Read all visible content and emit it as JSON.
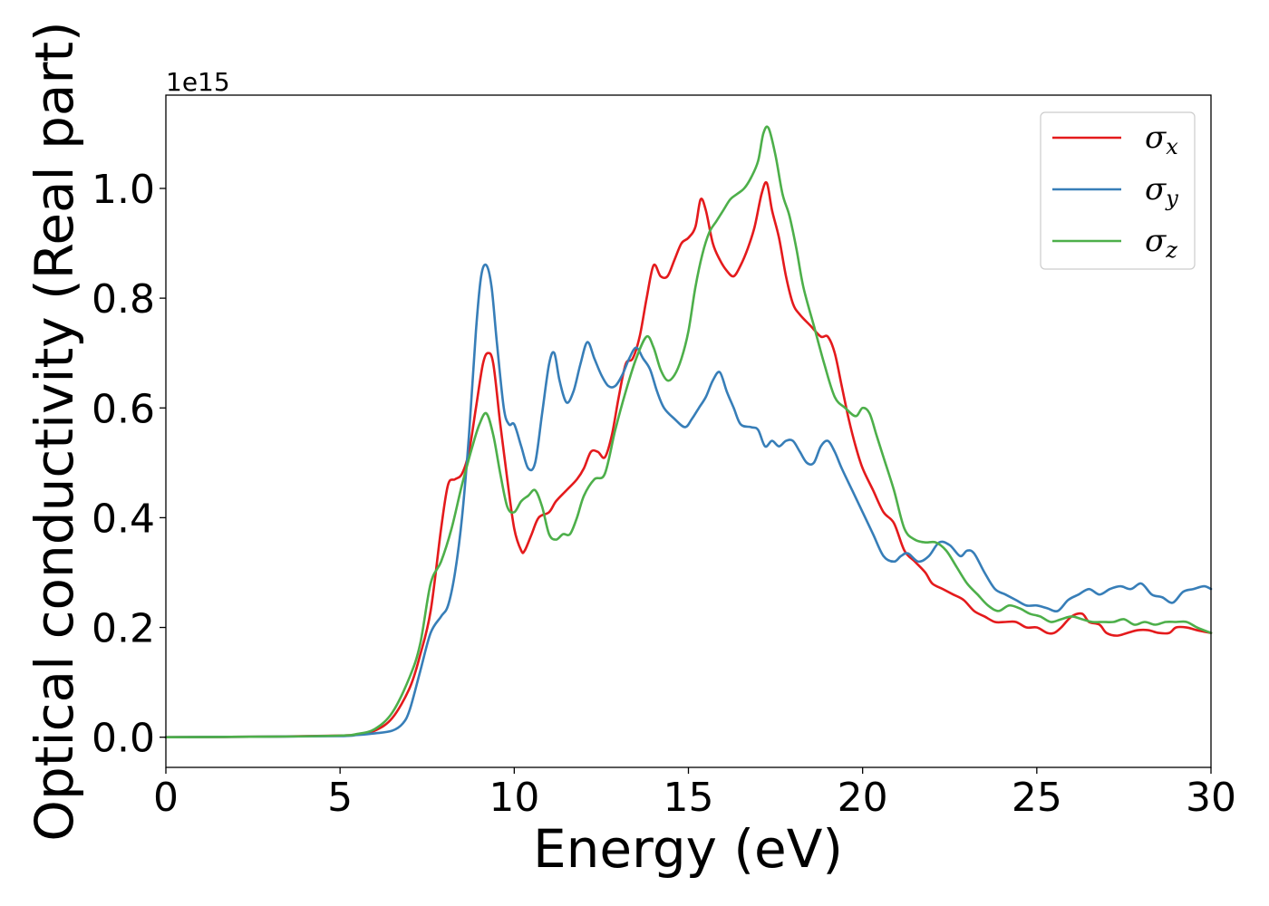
{
  "chart_data": {
    "type": "line",
    "xlabel": "Energy (eV)",
    "ylabel": "Optical conductivity (Real part)",
    "y_offset_text": "1e15",
    "xlim": [
      0,
      30
    ],
    "ylim": [
      -0.055,
      1.17
    ],
    "x_ticks": [
      0,
      5,
      10,
      15,
      20,
      25,
      30
    ],
    "y_ticks": [
      0.0,
      0.2,
      0.4,
      0.6,
      0.8,
      1.0
    ],
    "x_tick_labels": [
      "0",
      "5",
      "10",
      "15",
      "20",
      "25",
      "30"
    ],
    "y_tick_labels": [
      "0.0",
      "0.2",
      "0.4",
      "0.6",
      "0.8",
      "1.0"
    ],
    "grid": false,
    "legend_position": "top-right",
    "series": [
      {
        "name": "σx",
        "symbol": "σ",
        "subscript": "x",
        "color": "#e41a1c",
        "x": [
          0,
          3,
          5,
          5.5,
          6,
          6.5,
          7,
          7.3,
          7.6,
          7.9,
          8.1,
          8.3,
          8.5,
          8.7,
          8.9,
          9.1,
          9.25,
          9.4,
          9.6,
          9.8,
          10.0,
          10.2,
          10.3,
          10.5,
          10.7,
          11.0,
          11.2,
          11.5,
          11.8,
          12.0,
          12.2,
          12.4,
          12.6,
          12.8,
          13.0,
          13.2,
          13.4,
          13.6,
          13.8,
          14.0,
          14.2,
          14.4,
          14.6,
          14.8,
          15.0,
          15.2,
          15.35,
          15.5,
          15.7,
          15.9,
          16.1,
          16.3,
          16.5,
          16.7,
          16.9,
          17.1,
          17.25,
          17.4,
          17.6,
          17.8,
          18.0,
          18.2,
          18.5,
          18.8,
          19.0,
          19.2,
          19.4,
          19.6,
          19.8,
          20.0,
          20.3,
          20.6,
          20.9,
          21.2,
          21.5,
          21.8,
          22.0,
          22.3,
          22.6,
          22.9,
          23.2,
          23.5,
          23.8,
          24.1,
          24.4,
          24.7,
          25.0,
          25.3,
          25.5,
          25.7,
          26.0,
          26.3,
          26.5,
          26.8,
          27.0,
          27.3,
          27.6,
          27.9,
          28.2,
          28.5,
          28.8,
          29.0,
          29.3,
          29.6,
          30.0
        ],
        "y": [
          0,
          0.001,
          0.003,
          0.005,
          0.012,
          0.035,
          0.09,
          0.15,
          0.23,
          0.38,
          0.46,
          0.47,
          0.48,
          0.52,
          0.6,
          0.68,
          0.7,
          0.68,
          0.57,
          0.47,
          0.38,
          0.34,
          0.34,
          0.37,
          0.4,
          0.41,
          0.43,
          0.45,
          0.47,
          0.49,
          0.52,
          0.52,
          0.51,
          0.55,
          0.62,
          0.68,
          0.69,
          0.73,
          0.8,
          0.86,
          0.84,
          0.84,
          0.87,
          0.9,
          0.91,
          0.93,
          0.98,
          0.96,
          0.9,
          0.87,
          0.85,
          0.84,
          0.86,
          0.89,
          0.93,
          0.99,
          1.01,
          0.96,
          0.91,
          0.84,
          0.79,
          0.77,
          0.75,
          0.73,
          0.73,
          0.7,
          0.64,
          0.58,
          0.53,
          0.49,
          0.45,
          0.41,
          0.39,
          0.34,
          0.32,
          0.3,
          0.28,
          0.27,
          0.26,
          0.25,
          0.23,
          0.22,
          0.21,
          0.21,
          0.21,
          0.2,
          0.2,
          0.19,
          0.19,
          0.2,
          0.22,
          0.225,
          0.21,
          0.205,
          0.19,
          0.185,
          0.19,
          0.195,
          0.195,
          0.19,
          0.19,
          0.2,
          0.2,
          0.195,
          0.19
        ]
      },
      {
        "name": "σy",
        "symbol": "σ",
        "subscript": "y",
        "color": "#377eb8",
        "x": [
          0,
          3,
          5,
          5.5,
          6,
          6.5,
          6.8,
          7.0,
          7.3,
          7.6,
          7.9,
          8.1,
          8.3,
          8.5,
          8.7,
          8.9,
          9.05,
          9.2,
          9.35,
          9.5,
          9.7,
          9.85,
          10.0,
          10.2,
          10.4,
          10.6,
          10.8,
          11.0,
          11.15,
          11.3,
          11.5,
          11.7,
          11.9,
          12.1,
          12.3,
          12.5,
          12.7,
          12.9,
          13.1,
          13.3,
          13.5,
          13.7,
          13.9,
          14.1,
          14.3,
          14.6,
          14.9,
          15.1,
          15.3,
          15.5,
          15.7,
          15.9,
          16.1,
          16.3,
          16.5,
          16.8,
          17.0,
          17.2,
          17.4,
          17.6,
          17.8,
          18.0,
          18.2,
          18.4,
          18.6,
          18.8,
          19.0,
          19.2,
          19.4,
          19.7,
          20.0,
          20.3,
          20.6,
          20.9,
          21.1,
          21.3,
          21.6,
          21.9,
          22.2,
          22.5,
          22.8,
          23.0,
          23.2,
          23.5,
          23.8,
          24.1,
          24.4,
          24.7,
          25.0,
          25.3,
          25.6,
          25.9,
          26.2,
          26.5,
          26.8,
          27.1,
          27.4,
          27.7,
          28.0,
          28.3,
          28.6,
          28.9,
          29.2,
          29.5,
          29.8,
          30.0
        ],
        "y": [
          0,
          0.001,
          0.002,
          0.004,
          0.007,
          0.012,
          0.025,
          0.05,
          0.12,
          0.19,
          0.22,
          0.24,
          0.3,
          0.4,
          0.55,
          0.74,
          0.84,
          0.86,
          0.82,
          0.72,
          0.6,
          0.57,
          0.57,
          0.53,
          0.49,
          0.5,
          0.59,
          0.68,
          0.7,
          0.65,
          0.61,
          0.63,
          0.68,
          0.72,
          0.69,
          0.66,
          0.64,
          0.64,
          0.66,
          0.69,
          0.71,
          0.69,
          0.67,
          0.63,
          0.6,
          0.58,
          0.565,
          0.58,
          0.6,
          0.62,
          0.65,
          0.665,
          0.63,
          0.6,
          0.57,
          0.565,
          0.56,
          0.53,
          0.54,
          0.53,
          0.54,
          0.54,
          0.52,
          0.5,
          0.5,
          0.53,
          0.54,
          0.52,
          0.49,
          0.45,
          0.41,
          0.37,
          0.33,
          0.32,
          0.33,
          0.335,
          0.32,
          0.33,
          0.355,
          0.35,
          0.33,
          0.34,
          0.335,
          0.3,
          0.27,
          0.26,
          0.25,
          0.24,
          0.24,
          0.235,
          0.23,
          0.25,
          0.26,
          0.27,
          0.26,
          0.27,
          0.275,
          0.27,
          0.28,
          0.26,
          0.255,
          0.245,
          0.265,
          0.27,
          0.275,
          0.27
        ]
      },
      {
        "name": "σz",
        "symbol": "σ",
        "subscript": "z",
        "color": "#4daf4a",
        "x": [
          0,
          3,
          5,
          5.5,
          6,
          6.5,
          7.0,
          7.3,
          7.6,
          7.9,
          8.2,
          8.5,
          8.8,
          9.0,
          9.2,
          9.4,
          9.6,
          9.8,
          10.0,
          10.2,
          10.4,
          10.6,
          10.8,
          11.0,
          11.2,
          11.4,
          11.6,
          11.8,
          12.0,
          12.3,
          12.6,
          12.9,
          13.2,
          13.5,
          13.8,
          14.0,
          14.2,
          14.4,
          14.6,
          14.8,
          15.0,
          15.2,
          15.4,
          15.6,
          15.8,
          16.0,
          16.2,
          16.4,
          16.6,
          16.8,
          17.0,
          17.15,
          17.3,
          17.5,
          17.7,
          17.9,
          18.1,
          18.3,
          18.6,
          18.9,
          19.2,
          19.5,
          19.8,
          20.0,
          20.2,
          20.4,
          20.6,
          20.9,
          21.2,
          21.5,
          21.8,
          22.1,
          22.4,
          22.7,
          23.0,
          23.3,
          23.6,
          23.9,
          24.2,
          24.5,
          24.8,
          25.1,
          25.4,
          25.7,
          26.0,
          26.3,
          26.6,
          26.9,
          27.2,
          27.5,
          27.8,
          28.1,
          28.4,
          28.7,
          29.0,
          29.3,
          29.6,
          30.0
        ],
        "y": [
          0,
          0.001,
          0.003,
          0.006,
          0.015,
          0.045,
          0.11,
          0.17,
          0.28,
          0.32,
          0.38,
          0.46,
          0.53,
          0.57,
          0.59,
          0.55,
          0.48,
          0.42,
          0.41,
          0.43,
          0.44,
          0.45,
          0.42,
          0.37,
          0.36,
          0.37,
          0.37,
          0.4,
          0.44,
          0.47,
          0.48,
          0.56,
          0.63,
          0.69,
          0.73,
          0.71,
          0.67,
          0.65,
          0.66,
          0.69,
          0.74,
          0.82,
          0.88,
          0.92,
          0.94,
          0.96,
          0.98,
          0.99,
          1.0,
          1.02,
          1.05,
          1.1,
          1.11,
          1.06,
          0.99,
          0.95,
          0.89,
          0.82,
          0.75,
          0.68,
          0.62,
          0.6,
          0.585,
          0.6,
          0.59,
          0.55,
          0.51,
          0.45,
          0.38,
          0.36,
          0.355,
          0.355,
          0.34,
          0.31,
          0.28,
          0.26,
          0.24,
          0.23,
          0.24,
          0.235,
          0.225,
          0.22,
          0.21,
          0.215,
          0.22,
          0.215,
          0.21,
          0.21,
          0.21,
          0.215,
          0.205,
          0.21,
          0.205,
          0.21,
          0.21,
          0.21,
          0.2,
          0.19
        ]
      }
    ]
  }
}
